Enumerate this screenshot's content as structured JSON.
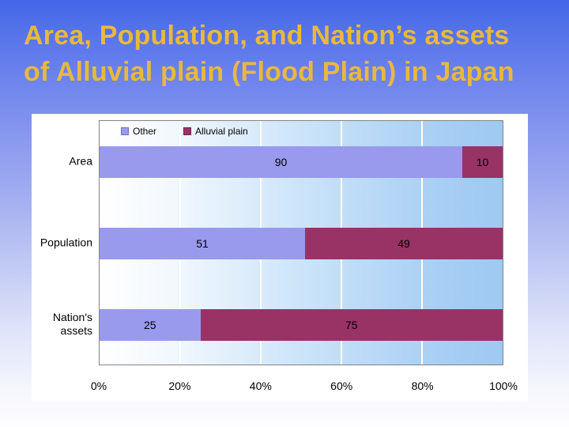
{
  "slide": {
    "title_line1": "Area, Population, and Nation’s assets",
    "title_line2": "of Alluvial plain (Flood Plain) in Japan",
    "title_color": "#E9B83D",
    "background_top_color": "#4467E8",
    "background_bottom_color": "#FDFDFF",
    "panel_color": "#FFFFFF"
  },
  "chart_data": {
    "type": "bar",
    "orientation": "horizontal",
    "stacked": true,
    "title": "",
    "xlabel": "",
    "ylabel": "",
    "categories": [
      "Area",
      "Population",
      "Nation's assets"
    ],
    "series": [
      {
        "name": "Other",
        "color": "#9999EE",
        "values": [
          90,
          51,
          25
        ]
      },
      {
        "name": "Alluvial plain",
        "color": "#993366",
        "values": [
          10,
          49,
          75
        ]
      }
    ],
    "xlim": [
      0,
      100
    ],
    "x_ticks": [
      "0%",
      "20%",
      "40%",
      "60%",
      "80%",
      "100%"
    ],
    "gridlines_pct": [
      20,
      40,
      60,
      80
    ],
    "gridline_color": "#FFFFFF",
    "legend_position": "top",
    "data_labels": true,
    "plot_border_color": "#848484"
  }
}
